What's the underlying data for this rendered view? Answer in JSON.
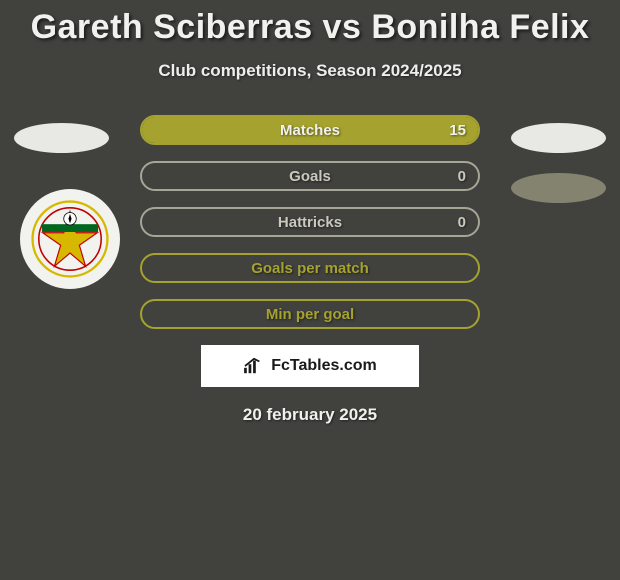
{
  "header": {
    "title": "Gareth Sciberras vs Bonilha Felix",
    "subtitle": "Club competitions, Season 2024/2025"
  },
  "colors": {
    "bg": "#41413e",
    "accent_border": "#a5a22f",
    "accent_fill": "#a5a22f",
    "secondary_border": "#a6a596",
    "text_light": "#f1f1ee",
    "text_dim": "#c9c9bd",
    "white": "#ffffff"
  },
  "bars": [
    {
      "label": "Matches",
      "value": "15",
      "fill_pct": 100,
      "border_key": "accent_border",
      "fill_key": "accent_fill",
      "label_color": "#f1f1ee",
      "value_color": "#f1f1ee"
    },
    {
      "label": "Goals",
      "value": "0",
      "fill_pct": 0,
      "border_key": "secondary_border",
      "fill_key": null,
      "label_color": "#c9c9bd",
      "value_color": "#c9c9bd"
    },
    {
      "label": "Hattricks",
      "value": "0",
      "fill_pct": 0,
      "border_key": "secondary_border",
      "fill_key": null,
      "label_color": "#c9c9bd",
      "value_color": "#c9c9bd"
    },
    {
      "label": "Goals per match",
      "value": "",
      "fill_pct": 0,
      "border_key": "accent_border",
      "fill_key": null,
      "label_color": "#a5a22f",
      "value_color": "#a5a22f"
    },
    {
      "label": "Min per goal",
      "value": "",
      "fill_pct": 0,
      "border_key": "accent_border",
      "fill_key": null,
      "label_color": "#a5a22f",
      "value_color": "#a5a22f"
    }
  ],
  "brand": "FcTables.com",
  "date": "20 february 2025"
}
